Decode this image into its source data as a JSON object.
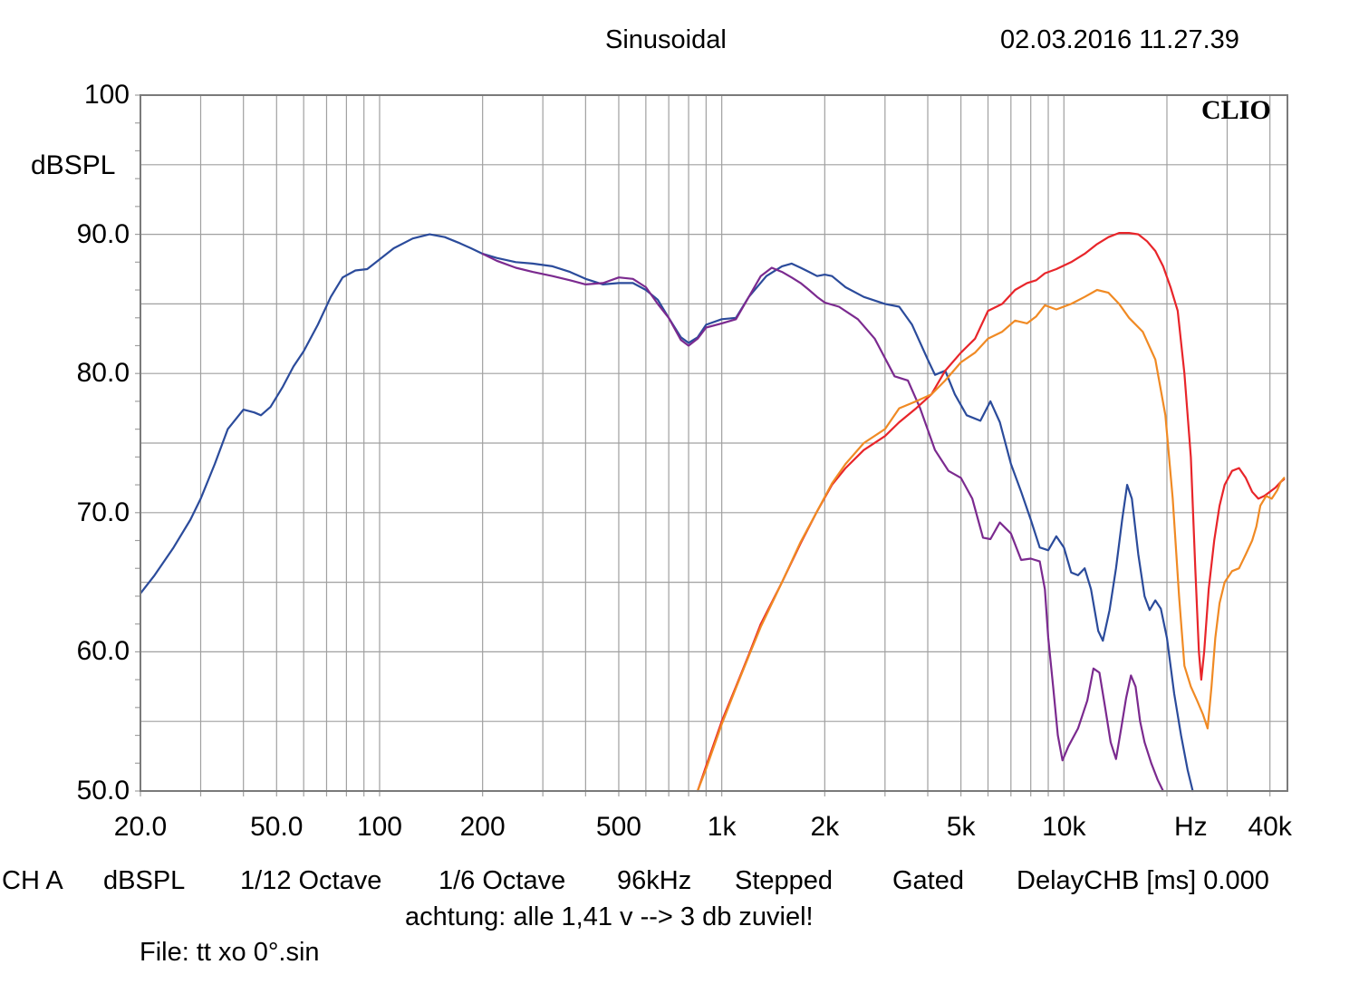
{
  "header": {
    "mode": "Sinusoidal",
    "datetime": "02.03.2016 11.27.39"
  },
  "brand": "CLIO",
  "y_unit_label": "dBSPL",
  "x_unit_label": "Hz",
  "footer": {
    "items": [
      "CH A",
      "dBSPL",
      "1/12 Octave",
      "1/6 Octave",
      "96kHz",
      "Stepped",
      "Gated",
      "DelayCHB [ms] 0.000"
    ],
    "note": "achtung: alle 1,41 v --> 3 db zuviel!",
    "file": "File: tt xo 0°.sin"
  },
  "colors": {
    "grid": "#a0a0a0",
    "frame": "#7a7a7a",
    "series": [
      "#2b4b9b",
      "#7b2a8f",
      "#e8252a",
      "#f08a24"
    ]
  },
  "chart_data": {
    "type": "line",
    "title": "",
    "xlabel": "Hz",
    "ylabel": "dBSPL",
    "x_scale": "log",
    "xlim": [
      20,
      45000
    ],
    "ylim": [
      50,
      100
    ],
    "grid": true,
    "y_ticks": [
      {
        "value": 100,
        "label": "100"
      },
      {
        "value": 90,
        "label": "90.0"
      },
      {
        "value": 80,
        "label": "80.0"
      },
      {
        "value": 70,
        "label": "70.0"
      },
      {
        "value": 60,
        "label": "60.0"
      },
      {
        "value": 50,
        "label": "50.0"
      }
    ],
    "x_ticks": [
      {
        "value": 20,
        "label": "20.0"
      },
      {
        "value": 50,
        "label": "50.0"
      },
      {
        "value": 100,
        "label": "100"
      },
      {
        "value": 200,
        "label": "200"
      },
      {
        "value": 500,
        "label": "500"
      },
      {
        "value": 1000,
        "label": "1k"
      },
      {
        "value": 2000,
        "label": "2k"
      },
      {
        "value": 5000,
        "label": "5k"
      },
      {
        "value": 10000,
        "label": "10k"
      },
      {
        "value": 40000,
        "label": "40k"
      }
    ],
    "series": [
      {
        "points": [
          [
            20,
            64.2
          ],
          [
            22,
            65.5
          ],
          [
            25,
            67.5
          ],
          [
            28,
            69.5
          ],
          [
            30,
            71
          ],
          [
            33,
            73.5
          ],
          [
            36,
            76
          ],
          [
            40,
            77.4
          ],
          [
            43,
            77.2
          ],
          [
            45,
            77
          ],
          [
            48,
            77.6
          ],
          [
            52,
            79
          ],
          [
            56,
            80.5
          ],
          [
            60,
            81.6
          ],
          [
            66,
            83.5
          ],
          [
            72,
            85.5
          ],
          [
            78,
            86.9
          ],
          [
            85,
            87.4
          ],
          [
            92,
            87.5
          ],
          [
            100,
            88.2
          ],
          [
            110,
            89
          ],
          [
            125,
            89.7
          ],
          [
            140,
            90
          ],
          [
            155,
            89.8
          ],
          [
            170,
            89.4
          ],
          [
            185,
            89
          ],
          [
            200,
            88.6
          ],
          [
            220,
            88.3
          ],
          [
            250,
            88
          ],
          [
            280,
            87.9
          ],
          [
            320,
            87.7
          ],
          [
            360,
            87.3
          ],
          [
            400,
            86.8
          ],
          [
            450,
            86.4
          ],
          [
            500,
            86.5
          ],
          [
            550,
            86.5
          ],
          [
            600,
            86
          ],
          [
            650,
            85.3
          ],
          [
            700,
            84
          ],
          [
            760,
            82.6
          ],
          [
            800,
            82.2
          ],
          [
            850,
            82.6
          ],
          [
            900,
            83.5
          ],
          [
            1000,
            83.9
          ],
          [
            1100,
            84
          ],
          [
            1200,
            85.5
          ],
          [
            1350,
            87
          ],
          [
            1500,
            87.7
          ],
          [
            1600,
            87.9
          ],
          [
            1700,
            87.6
          ],
          [
            1800,
            87.3
          ],
          [
            1900,
            87
          ],
          [
            2000,
            87.1
          ],
          [
            2100,
            87
          ],
          [
            2300,
            86.2
          ],
          [
            2600,
            85.5
          ],
          [
            3000,
            85
          ],
          [
            3300,
            84.8
          ],
          [
            3600,
            83.5
          ],
          [
            4000,
            81
          ],
          [
            4200,
            79.9
          ],
          [
            4500,
            80.2
          ],
          [
            4800,
            78.5
          ],
          [
            5200,
            77
          ],
          [
            5700,
            76.6
          ],
          [
            6100,
            78
          ],
          [
            6500,
            76.5
          ],
          [
            7000,
            73.5
          ],
          [
            7500,
            71.5
          ],
          [
            8000,
            69.5
          ],
          [
            8500,
            67.5
          ],
          [
            9000,
            67.3
          ],
          [
            9500,
            68.3
          ],
          [
            10000,
            67.5
          ],
          [
            10500,
            65.7
          ],
          [
            11000,
            65.5
          ],
          [
            11500,
            66
          ],
          [
            12000,
            64.5
          ],
          [
            12600,
            61.5
          ],
          [
            13000,
            60.8
          ],
          [
            13600,
            63
          ],
          [
            14200,
            66
          ],
          [
            14800,
            69.5
          ],
          [
            15300,
            72
          ],
          [
            15800,
            71
          ],
          [
            16500,
            67
          ],
          [
            17200,
            64
          ],
          [
            17800,
            63
          ],
          [
            18500,
            63.7
          ],
          [
            19200,
            63.1
          ],
          [
            20000,
            61
          ],
          [
            21000,
            57
          ],
          [
            22000,
            54
          ],
          [
            23000,
            51.5
          ],
          [
            23800,
            50
          ]
        ]
      },
      {
        "points": [
          [
            200,
            88.6
          ],
          [
            220,
            88.1
          ],
          [
            250,
            87.6
          ],
          [
            280,
            87.3
          ],
          [
            320,
            87
          ],
          [
            360,
            86.7
          ],
          [
            400,
            86.4
          ],
          [
            450,
            86.5
          ],
          [
            500,
            86.9
          ],
          [
            550,
            86.8
          ],
          [
            600,
            86.2
          ],
          [
            650,
            85
          ],
          [
            700,
            84
          ],
          [
            760,
            82.4
          ],
          [
            800,
            82
          ],
          [
            850,
            82.5
          ],
          [
            900,
            83.3
          ],
          [
            1000,
            83.6
          ],
          [
            1100,
            83.9
          ],
          [
            1200,
            85.5
          ],
          [
            1300,
            87
          ],
          [
            1400,
            87.6
          ],
          [
            1500,
            87.3
          ],
          [
            1600,
            86.9
          ],
          [
            1700,
            86.5
          ],
          [
            1800,
            86
          ],
          [
            1900,
            85.5
          ],
          [
            2000,
            85.1
          ],
          [
            2200,
            84.8
          ],
          [
            2500,
            83.9
          ],
          [
            2800,
            82.5
          ],
          [
            3200,
            79.8
          ],
          [
            3500,
            79.5
          ],
          [
            3800,
            77.5
          ],
          [
            4200,
            74.5
          ],
          [
            4600,
            73
          ],
          [
            5000,
            72.5
          ],
          [
            5400,
            71
          ],
          [
            5800,
            68.2
          ],
          [
            6100,
            68.1
          ],
          [
            6500,
            69.3
          ],
          [
            7000,
            68.5
          ],
          [
            7500,
            66.6
          ],
          [
            8000,
            66.7
          ],
          [
            8500,
            66.5
          ],
          [
            8800,
            64.5
          ],
          [
            9000,
            61
          ],
          [
            9300,
            57.5
          ],
          [
            9600,
            54
          ],
          [
            9900,
            52.2
          ],
          [
            10300,
            53.2
          ],
          [
            11000,
            54.5
          ],
          [
            11700,
            56.5
          ],
          [
            12200,
            58.8
          ],
          [
            12700,
            58.5
          ],
          [
            13200,
            56
          ],
          [
            13700,
            53.5
          ],
          [
            14200,
            52.3
          ],
          [
            14700,
            54.5
          ],
          [
            15200,
            56.7
          ],
          [
            15700,
            58.3
          ],
          [
            16200,
            57.5
          ],
          [
            16700,
            55
          ],
          [
            17200,
            53.5
          ],
          [
            18000,
            52
          ],
          [
            18800,
            50.8
          ],
          [
            19500,
            50
          ]
        ]
      },
      {
        "points": [
          [
            850,
            50
          ],
          [
            900,
            51.8
          ],
          [
            1000,
            55
          ],
          [
            1100,
            57.5
          ],
          [
            1200,
            59.8
          ],
          [
            1300,
            62
          ],
          [
            1500,
            65
          ],
          [
            1700,
            67.8
          ],
          [
            1900,
            70.1
          ],
          [
            2100,
            72
          ],
          [
            2300,
            73.2
          ],
          [
            2600,
            74.5
          ],
          [
            3000,
            75.5
          ],
          [
            3300,
            76.5
          ],
          [
            3700,
            77.5
          ],
          [
            4100,
            78.5
          ],
          [
            4500,
            80.2
          ],
          [
            5000,
            81.5
          ],
          [
            5500,
            82.5
          ],
          [
            6000,
            84.5
          ],
          [
            6600,
            85
          ],
          [
            7200,
            86
          ],
          [
            7800,
            86.5
          ],
          [
            8300,
            86.7
          ],
          [
            8800,
            87.2
          ],
          [
            9500,
            87.5
          ],
          [
            10500,
            88
          ],
          [
            11500,
            88.6
          ],
          [
            12500,
            89.3
          ],
          [
            13500,
            89.8
          ],
          [
            14500,
            90.1
          ],
          [
            15500,
            90.1
          ],
          [
            16500,
            90
          ],
          [
            17500,
            89.5
          ],
          [
            18500,
            88.8
          ],
          [
            19500,
            87.7
          ],
          [
            20500,
            86.2
          ],
          [
            21500,
            84.5
          ],
          [
            22500,
            80
          ],
          [
            23500,
            74
          ],
          [
            24200,
            66
          ],
          [
            24800,
            60
          ],
          [
            25200,
            58
          ],
          [
            25700,
            60
          ],
          [
            26500,
            64.5
          ],
          [
            27500,
            68
          ],
          [
            28500,
            70.5
          ],
          [
            29500,
            72
          ],
          [
            31000,
            73
          ],
          [
            32500,
            73.2
          ],
          [
            34000,
            72.5
          ],
          [
            35500,
            71.5
          ],
          [
            37000,
            71
          ],
          [
            38500,
            71.2
          ],
          [
            40000,
            71.5
          ],
          [
            41500,
            71.8
          ],
          [
            43000,
            72.2
          ],
          [
            44000,
            72.4
          ]
        ]
      },
      {
        "points": [
          [
            850,
            50
          ],
          [
            900,
            51.6
          ],
          [
            1000,
            54.8
          ],
          [
            1100,
            57.4
          ],
          [
            1200,
            59.7
          ],
          [
            1300,
            61.8
          ],
          [
            1500,
            65
          ],
          [
            1700,
            67.9
          ],
          [
            1900,
            70.1
          ],
          [
            2100,
            72.1
          ],
          [
            2300,
            73.5
          ],
          [
            2600,
            75
          ],
          [
            3000,
            76
          ],
          [
            3300,
            77.5
          ],
          [
            3700,
            78
          ],
          [
            4100,
            78.5
          ],
          [
            4500,
            79.5
          ],
          [
            5000,
            80.8
          ],
          [
            5500,
            81.5
          ],
          [
            6000,
            82.5
          ],
          [
            6600,
            83
          ],
          [
            7200,
            83.8
          ],
          [
            7800,
            83.6
          ],
          [
            8300,
            84.1
          ],
          [
            8800,
            84.9
          ],
          [
            9500,
            84.6
          ],
          [
            10500,
            85
          ],
          [
            11500,
            85.5
          ],
          [
            12500,
            86
          ],
          [
            13500,
            85.8
          ],
          [
            14500,
            85
          ],
          [
            15500,
            84
          ],
          [
            17000,
            83
          ],
          [
            18500,
            81
          ],
          [
            19800,
            77
          ],
          [
            20800,
            71
          ],
          [
            21700,
            64
          ],
          [
            22500,
            59
          ],
          [
            23500,
            57.5
          ],
          [
            24500,
            56.5
          ],
          [
            25500,
            55.5
          ],
          [
            26300,
            54.5
          ],
          [
            27000,
            57.5
          ],
          [
            27700,
            61
          ],
          [
            28500,
            63.5
          ],
          [
            29500,
            65
          ],
          [
            31000,
            65.8
          ],
          [
            32500,
            66
          ],
          [
            34000,
            67
          ],
          [
            35500,
            68
          ],
          [
            36500,
            69
          ],
          [
            37500,
            70.5
          ],
          [
            39000,
            71.2
          ],
          [
            40500,
            71
          ],
          [
            42000,
            71.6
          ],
          [
            43000,
            72.2
          ],
          [
            44000,
            72.5
          ]
        ]
      }
    ]
  }
}
